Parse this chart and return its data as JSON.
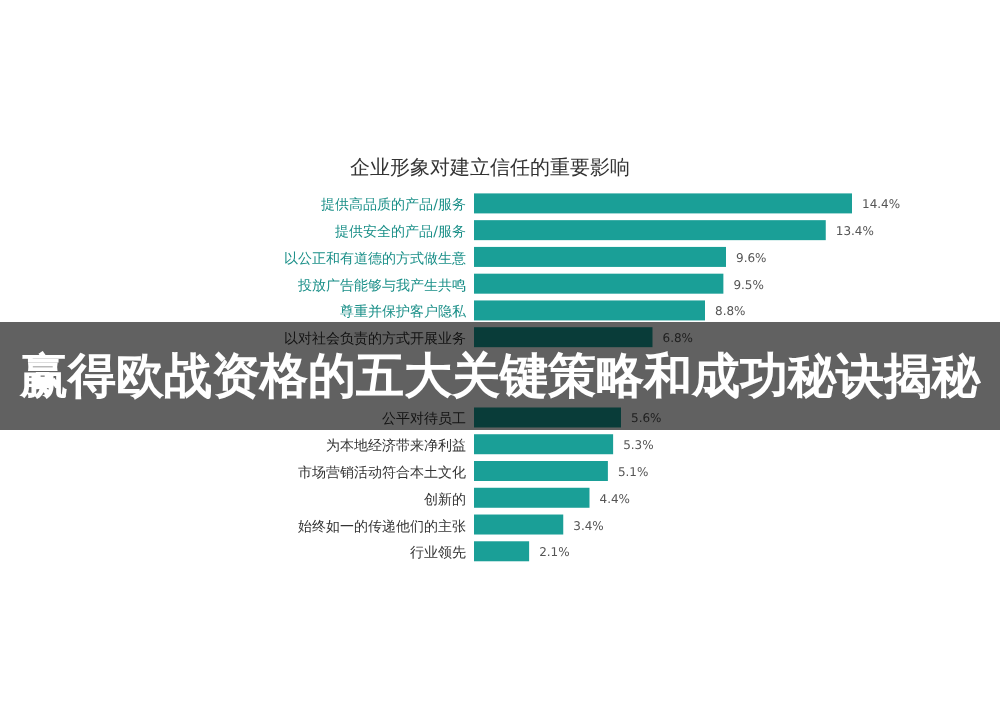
{
  "chart_data": {
    "type": "bar",
    "orientation": "horizontal",
    "title": "企业形象对建立信任的重要影响",
    "categories": [
      "提供高品质的产品/服务",
      "提供安全的产品/服务",
      "以公正和有道德的方式做生意",
      "投放广告能够与我产生共鸣",
      "尊重并保护客户隐私",
      "以对社会负责的方式开展业务",
      null,
      null,
      "公平对待员工",
      "为本地经济带来净利益",
      "市场营销活动符合本土文化",
      "创新的",
      "始终如一的传递他们的主张",
      "行业领先"
    ],
    "values": [
      14.4,
      13.4,
      9.6,
      9.5,
      8.8,
      6.8,
      null,
      null,
      5.6,
      5.3,
      5.1,
      4.4,
      3.4,
      2.1
    ],
    "value_labels": [
      "14.4%",
      "13.4%",
      "9.6%",
      "9.5%",
      "8.8%",
      "6.8%",
      null,
      null,
      "5.6%",
      "5.3%",
      "5.1%",
      "4.4%",
      "3.4%",
      "2.1%"
    ],
    "color": "#1a9f97",
    "annotations": [
      "赢得欧战资格的五大关键策略和成功秘诀揭秘"
    ]
  }
}
